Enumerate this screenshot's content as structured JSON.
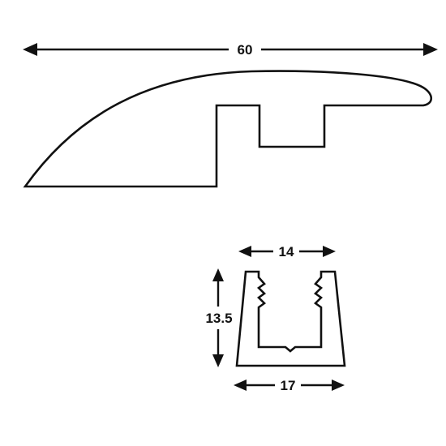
{
  "diagram": {
    "reducer_profile": {
      "width_label": "60"
    },
    "track_profile": {
      "top_width_label": "14",
      "height_label": "13.5",
      "bottom_width_label": "17"
    },
    "colors": {
      "line": "#111111",
      "background": "#ffffff"
    }
  }
}
